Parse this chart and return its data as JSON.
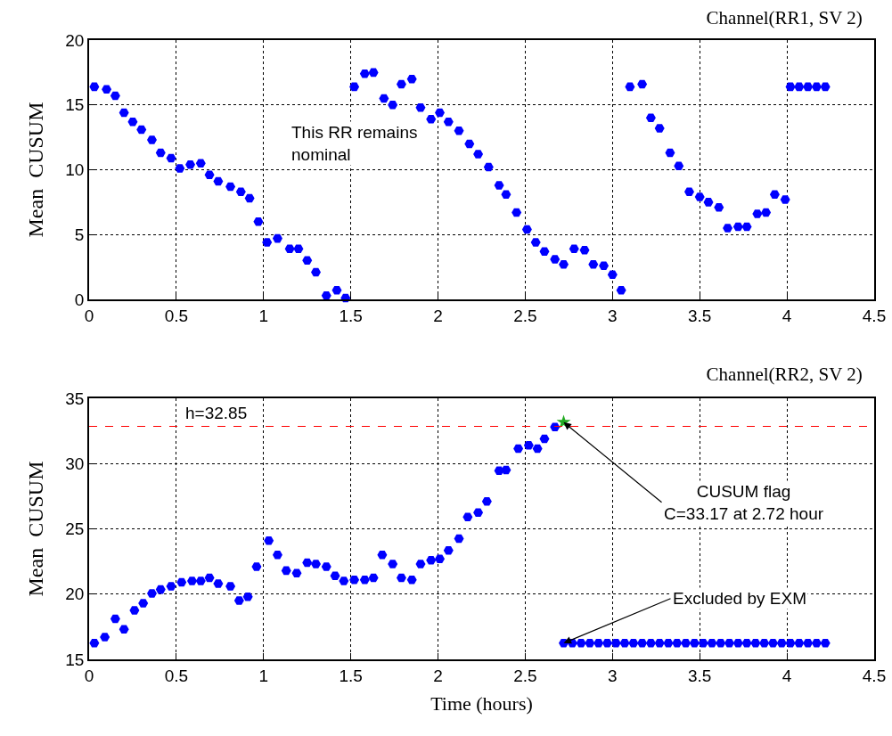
{
  "chart_data": [
    {
      "type": "scatter",
      "title": "Channel(RR1, SV 2)",
      "ylabel": "Mean  CUSUM",
      "marker": "circle",
      "grid": true,
      "line_style": "none",
      "xlim": [
        0,
        4.5
      ],
      "xticks": [
        0,
        0.5,
        1,
        1.5,
        2,
        2.5,
        3,
        3.5,
        4,
        4.5
      ],
      "ylim": [
        0,
        20
      ],
      "yticks": [
        0,
        5,
        10,
        15,
        20
      ],
      "annotations": [
        "This RR remains\nnominal"
      ],
      "series": [
        {
          "color": "#0000ff",
          "x": [
            0.03,
            0.1,
            0.15,
            0.2,
            0.25,
            0.3,
            0.36,
            0.41,
            0.47,
            0.52,
            0.58,
            0.64,
            0.69,
            0.74,
            0.81,
            0.87,
            0.92,
            0.97,
            1.02,
            1.08,
            1.15,
            1.2,
            1.25,
            1.3,
            1.36,
            1.42,
            1.47,
            1.52,
            1.58,
            1.63,
            1.69,
            1.74,
            1.79,
            1.85,
            1.9,
            1.96,
            2.01,
            2.06,
            2.12,
            2.18,
            2.23,
            2.29,
            2.35,
            2.39,
            2.45,
            2.51,
            2.56,
            2.61,
            2.67,
            2.72,
            2.78,
            2.84,
            2.89,
            2.95,
            3.0,
            3.05,
            3.1,
            3.17,
            3.22,
            3.27,
            3.33,
            3.38,
            3.44,
            3.5,
            3.55,
            3.61,
            3.66,
            3.72,
            3.77,
            3.83,
            3.88,
            3.93,
            3.99,
            4.02,
            4.07,
            4.12,
            4.17,
            4.22
          ],
          "values": [
            16.4,
            16.2,
            15.7,
            14.4,
            13.7,
            13.1,
            12.3,
            11.3,
            10.9,
            10.1,
            10.4,
            10.5,
            9.6,
            9.1,
            8.7,
            8.3,
            7.8,
            6.0,
            4.4,
            4.7,
            3.9,
            3.9,
            3.0,
            2.1,
            0.3,
            0.7,
            0.1,
            16.4,
            17.4,
            17.5,
            15.5,
            15.0,
            16.6,
            17.0,
            14.8,
            13.9,
            14.4,
            13.7,
            13.0,
            12.0,
            11.2,
            10.2,
            8.8,
            8.1,
            6.7,
            5.4,
            4.4,
            3.7,
            3.1,
            2.7,
            3.9,
            3.8,
            2.7,
            2.6,
            1.9,
            0.7,
            16.4,
            16.6,
            14.0,
            13.2,
            11.3,
            10.3,
            8.3,
            7.9,
            7.5,
            7.1,
            5.5,
            5.6,
            5.6,
            6.6,
            6.7,
            8.1,
            7.7,
            16.4,
            16.4,
            16.4,
            16.4,
            16.4
          ]
        }
      ]
    },
    {
      "type": "scatter",
      "title": "Channel(RR2, SV 2)",
      "xlabel": "Time (hours)",
      "ylabel": "Mean  CUSUM",
      "marker": "circle",
      "grid": true,
      "line_style": "none",
      "xlim": [
        0,
        4.5
      ],
      "xticks": [
        0,
        0.5,
        1,
        1.5,
        2,
        2.5,
        3,
        3.5,
        4,
        4.5
      ],
      "ylim": [
        15,
        35
      ],
      "yticks": [
        15,
        20,
        25,
        30,
        35
      ],
      "ref_lines": [
        {
          "axis": "y",
          "value": 32.85,
          "label": "h=32.85",
          "color": "#ff0000",
          "line_style": "dashed"
        }
      ],
      "annotations": [
        {
          "text": "CUSUM flag\nC=33.17 at 2.72 hour",
          "x": 2.72,
          "y": 33.17
        },
        {
          "text": "Excluded by EXM",
          "x": 2.72,
          "y": 16.25
        }
      ],
      "series": [
        {
          "color": "#0000ff",
          "x": [
            0.03,
            0.09,
            0.15,
            0.2,
            0.26,
            0.31,
            0.36,
            0.41,
            0.47,
            0.53,
            0.59,
            0.64,
            0.69,
            0.74,
            0.81,
            0.86,
            0.91,
            0.96,
            1.03,
            1.08,
            1.13,
            1.19,
            1.25,
            1.3,
            1.36,
            1.41,
            1.46,
            1.52,
            1.58,
            1.63,
            1.68,
            1.74,
            1.79,
            1.85,
            1.9,
            1.96,
            2.01,
            2.06,
            2.12,
            2.17,
            2.23,
            2.28,
            2.35,
            2.39,
            2.46,
            2.52,
            2.57,
            2.61,
            2.67
          ],
          "values": [
            16.25,
            16.7,
            18.1,
            17.3,
            18.75,
            19.3,
            20.05,
            20.35,
            20.6,
            20.9,
            21.0,
            21.0,
            21.25,
            20.8,
            20.6,
            19.5,
            19.8,
            22.1,
            24.1,
            23.0,
            21.8,
            21.6,
            22.4,
            22.3,
            22.1,
            21.4,
            21.0,
            21.1,
            21.1,
            21.25,
            23.0,
            22.3,
            21.25,
            21.1,
            22.3,
            22.6,
            22.7,
            23.35,
            24.25,
            25.9,
            26.25,
            27.1,
            29.45,
            29.5,
            31.15,
            31.4,
            31.15,
            31.9,
            32.8
          ]
        },
        {
          "color": "#0000ff",
          "x": [
            2.72,
            2.77,
            2.82,
            2.87,
            2.92,
            2.97,
            3.02,
            3.07,
            3.12,
            3.17,
            3.22,
            3.27,
            3.32,
            3.37,
            3.42,
            3.47,
            3.52,
            3.57,
            3.62,
            3.67,
            3.72,
            3.77,
            3.82,
            3.87,
            3.92,
            3.97,
            4.02,
            4.07,
            4.12,
            4.17,
            4.22
          ],
          "values": [
            16.25,
            16.25,
            16.25,
            16.25,
            16.25,
            16.25,
            16.25,
            16.25,
            16.25,
            16.25,
            16.25,
            16.25,
            16.25,
            16.25,
            16.25,
            16.25,
            16.25,
            16.25,
            16.25,
            16.25,
            16.25,
            16.25,
            16.25,
            16.25,
            16.25,
            16.25,
            16.25,
            16.25,
            16.25,
            16.25,
            16.25
          ]
        },
        {
          "color": "#22aa22",
          "marker": "star",
          "x": [
            2.72
          ],
          "values": [
            33.17
          ]
        }
      ]
    }
  ]
}
